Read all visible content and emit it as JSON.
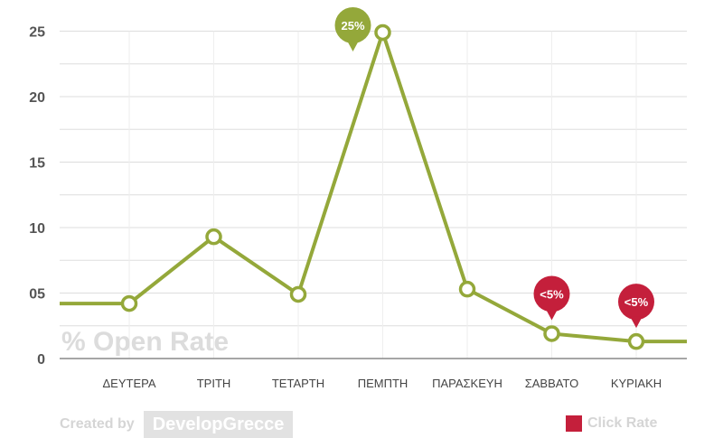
{
  "chart_data": {
    "type": "line",
    "watermark_label": "% Open Rate",
    "categories": [
      "ΔΕΥΤΕΡΑ",
      "ΤΡΙΤΗ",
      "ΤΕΤΑΡΤΗ",
      "ΠΕΜΠΤΗ",
      "ΠΑΡΑΣΚΕΥΗ",
      "ΣΑΒΒΑΤΟ",
      "ΚΥΡΙΑΚΗ"
    ],
    "values": [
      4.2,
      9.3,
      4.9,
      24.9,
      5.3,
      1.9,
      1.3
    ],
    "line_start_value": 4.2,
    "line_end_value": 1.3,
    "y_ticks": [
      "0",
      "05",
      "10",
      "15",
      "20",
      "25"
    ],
    "ylim": [
      0,
      26
    ],
    "grid": true,
    "series_color": "#94a83a",
    "callouts": [
      {
        "category": "ΠΕΜΠΤΗ",
        "text": "25%",
        "color": "#94a83a",
        "position": "above"
      },
      {
        "category": "ΣΑΒΒΑΤΟ",
        "text": "<5%",
        "color": "#c41f3b",
        "position": "above"
      },
      {
        "category": "ΚΥΡΙΑΚΗ",
        "text": "<5%",
        "color": "#c41f3b",
        "position": "above"
      }
    ],
    "legend": [
      {
        "label": "Click Rate",
        "color": "#c41f3b"
      }
    ]
  },
  "footer": {
    "created_by": "Created by",
    "brand": "DevelopGrecce"
  }
}
